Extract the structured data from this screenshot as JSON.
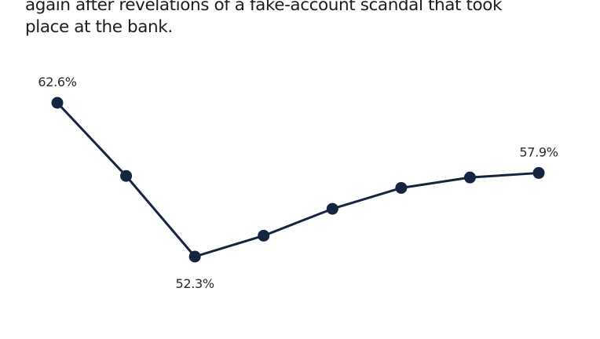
{
  "chart_data": {
    "type": "line",
    "subtitle": "again after revelations of a fake-account scandal that took place at the bank.",
    "values": [
      62.6,
      57.7,
      52.3,
      53.7,
      55.5,
      56.9,
      57.6,
      57.9
    ],
    "value_labels": [
      "62.6%",
      null,
      "52.3%",
      null,
      null,
      null,
      null,
      "57.9%"
    ],
    "color": "#15253f"
  }
}
